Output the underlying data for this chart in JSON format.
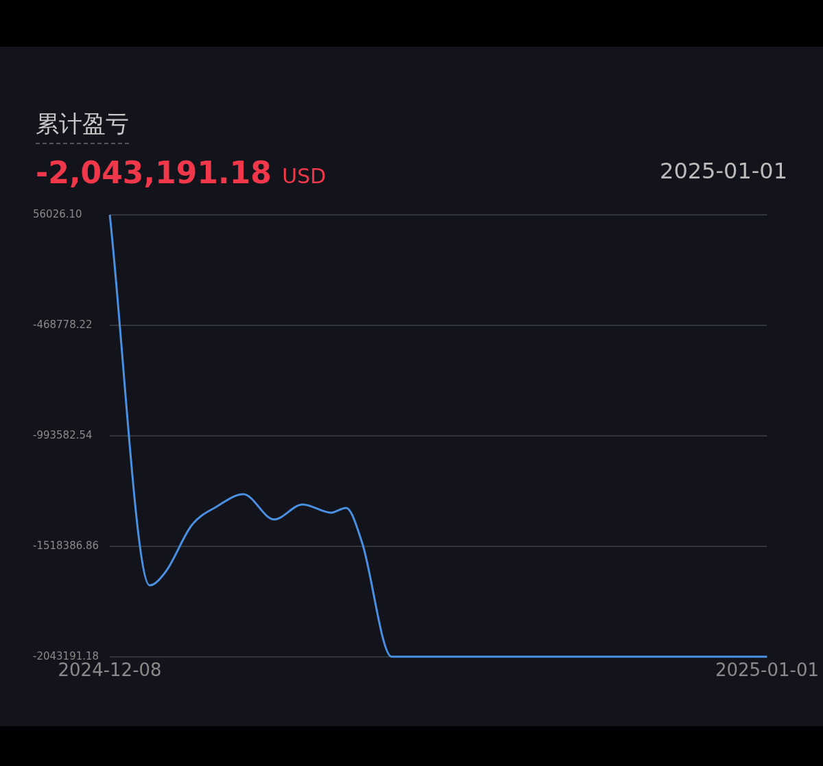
{
  "chart_data": {
    "type": "line",
    "title": "累计盈亏",
    "subtitle": "-2,043,191.18 USD",
    "annotations": [
      "2025-01-01"
    ],
    "series": [
      {
        "color": "#4a90e2",
        "x": [
          "2024-12-08",
          "2024-12-09T11:00",
          "2024-12-10T01:00",
          "2024-12-11",
          "2024-12-11T22:00",
          "2024-12-12T21:00",
          "2024-12-14",
          "2024-12-15T01:00",
          "2024-12-16T02:00",
          "2024-12-16T15:00",
          "2024-12-17T05:00",
          "2024-12-18T07:00",
          "2025-01-01"
        ],
        "values": [
          56026.1,
          -1704000,
          -1639000,
          -1417000,
          -1329000,
          -1271000,
          -1391000,
          -1320000,
          -1359000,
          -1336000,
          -1499000,
          -2043191.18,
          -2043191.18
        ]
      }
    ],
    "xlim": [
      "2024-12-08",
      "2025-01-01"
    ],
    "xticks": [
      "2024-12-08",
      "2025-01-01"
    ],
    "ylim": [
      -2043191.18,
      56026.1
    ],
    "yticks": [
      {
        "value": 56026.1,
        "label": "56026.10"
      },
      {
        "value": -468778.22,
        "label": "-468778.22"
      },
      {
        "value": -993582.54,
        "label": "-993582.54"
      },
      {
        "value": -1518386.86,
        "label": "-1518386.86"
      },
      {
        "value": -2043191.18,
        "label": "-2043191.18"
      }
    ],
    "grid": "y"
  }
}
